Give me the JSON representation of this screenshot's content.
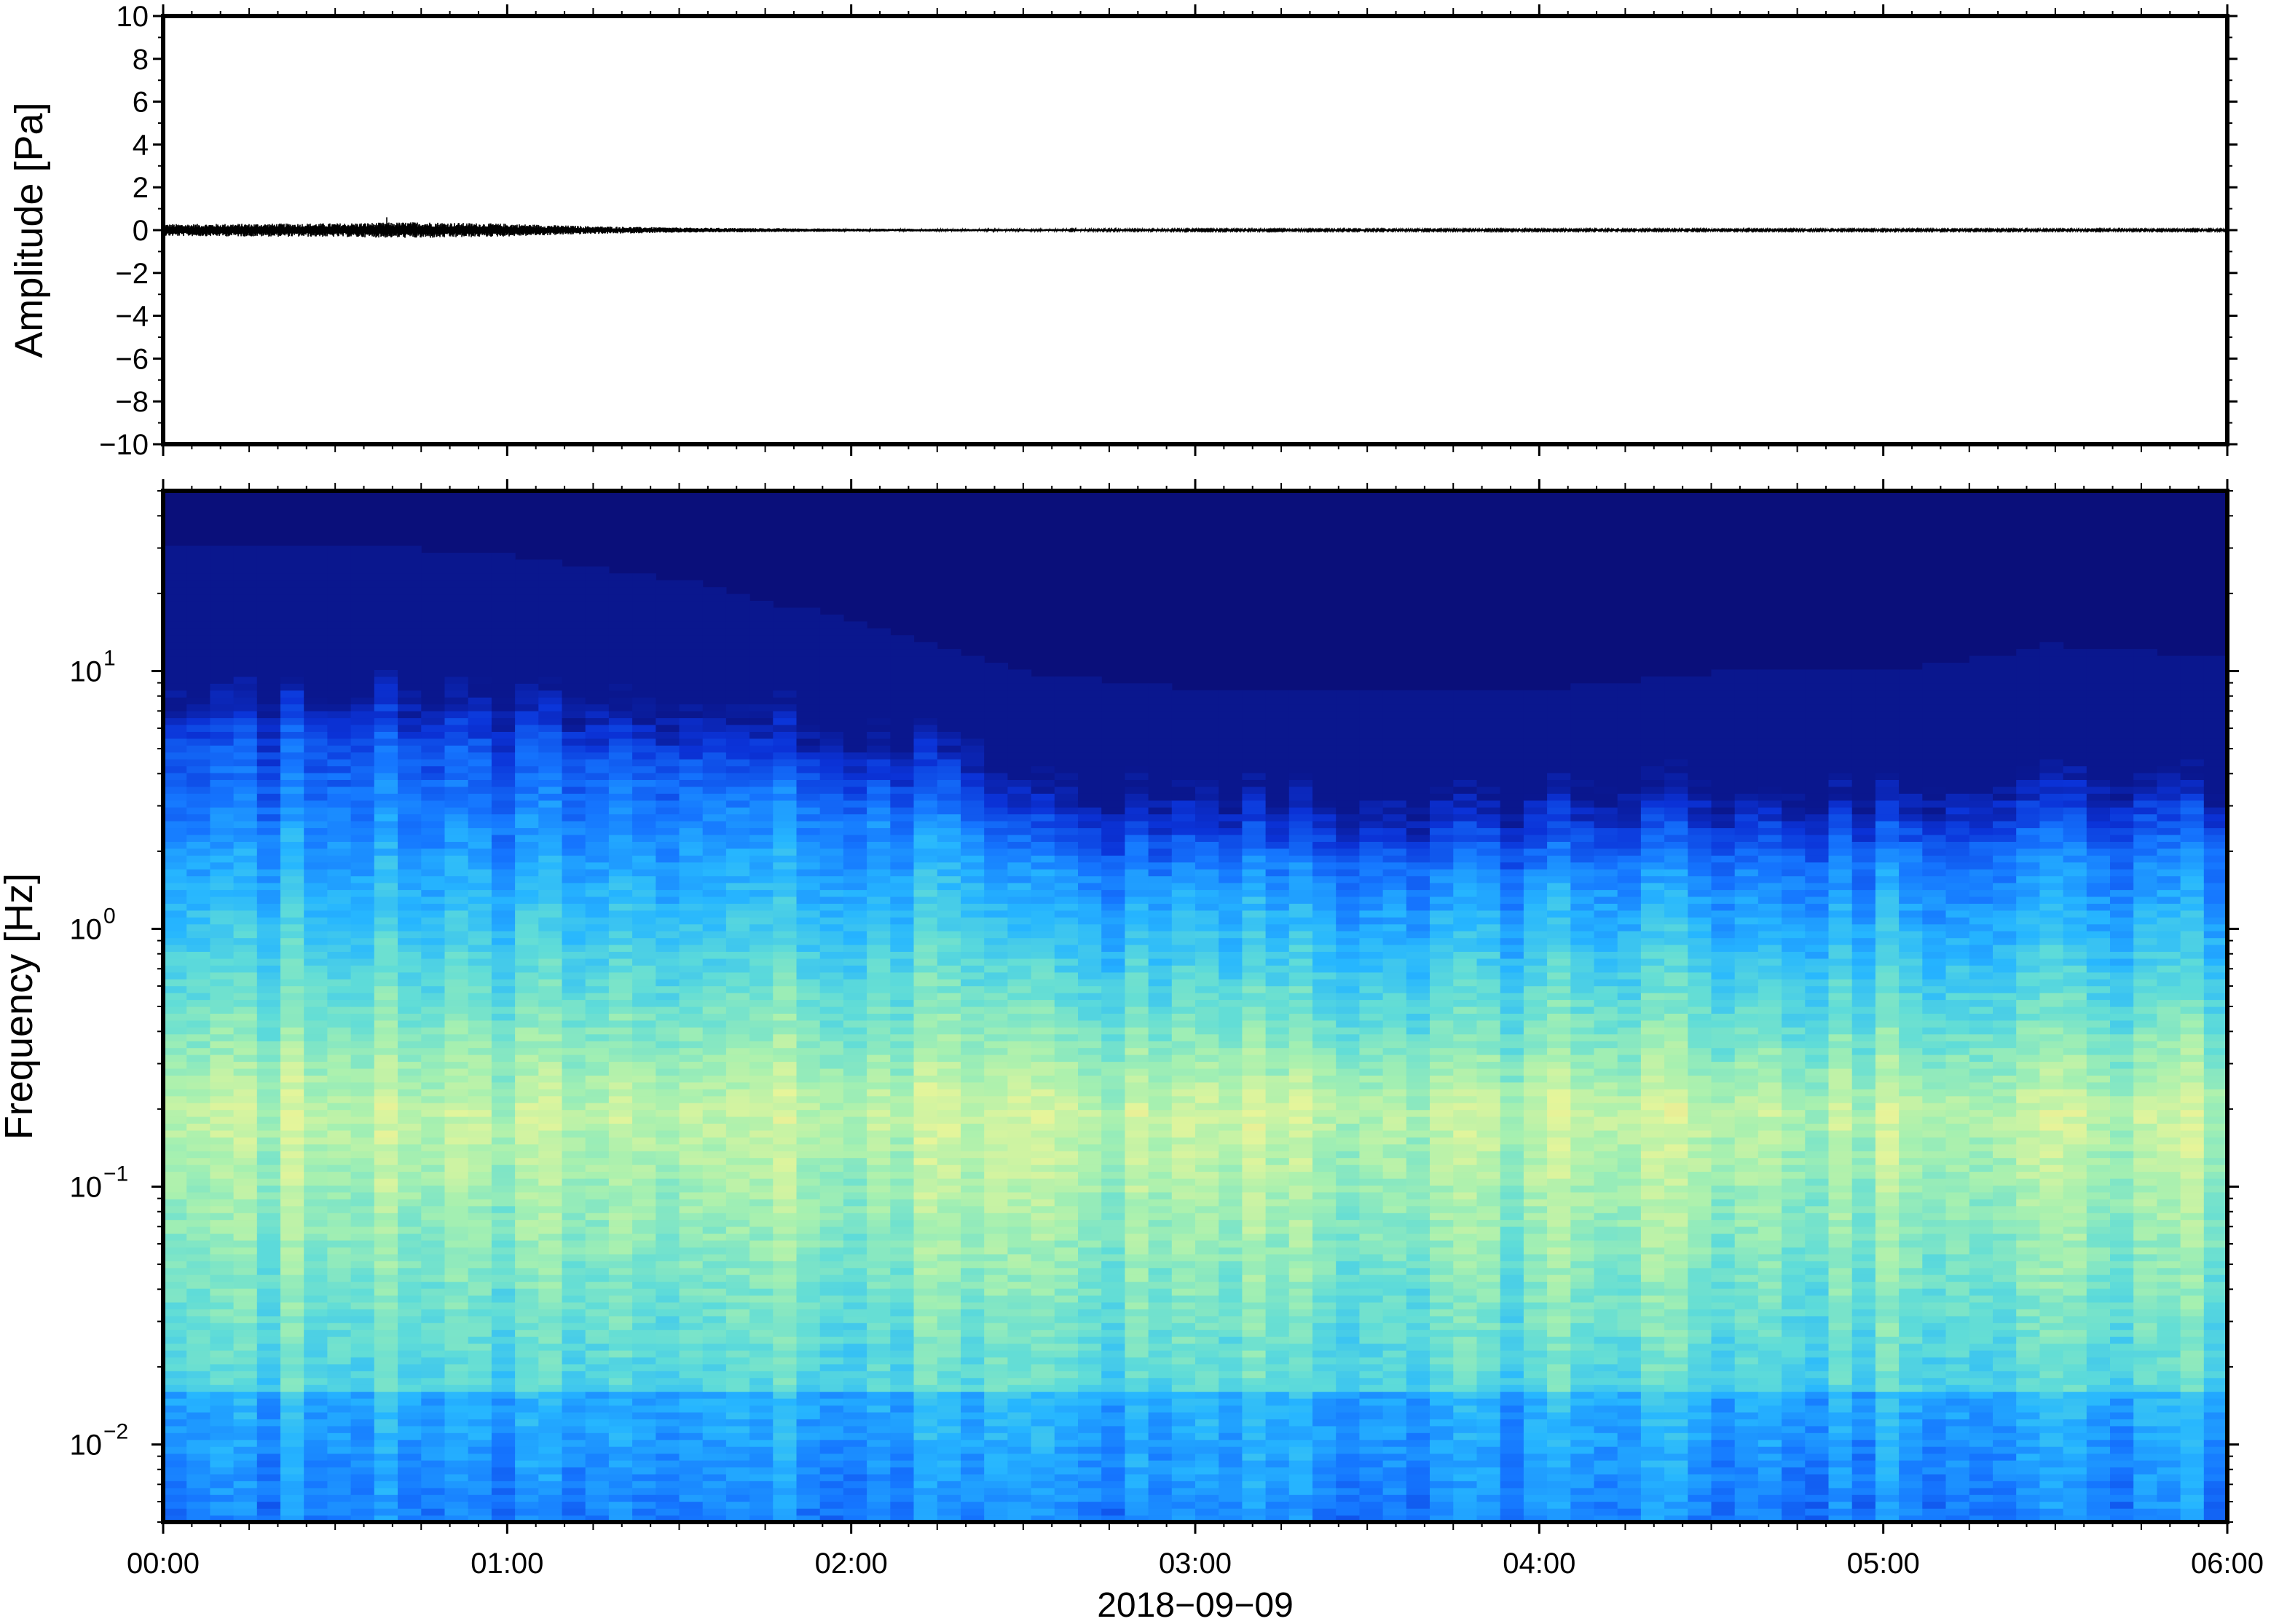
{
  "chart_data": [
    {
      "type": "line",
      "ylabel": "Amplitude [Pa]",
      "ylim": [
        -10,
        10
      ],
      "yticks": [
        -10,
        -8,
        -6,
        -4,
        -2,
        0,
        2,
        4,
        6,
        8,
        10
      ],
      "ytick_labels": [
        "−10",
        "−8",
        "−6",
        "−4",
        "−2",
        "0",
        "2",
        "4",
        "6",
        "8",
        "10"
      ],
      "xlim_hours": [
        0,
        6
      ],
      "series": [
        {
          "x_hours": [
            0.0,
            0.25,
            0.5,
            0.75,
            1.0,
            1.25,
            1.5,
            1.75,
            2.0,
            2.5,
            3.0,
            3.5,
            4.0,
            4.5,
            5.0,
            5.5,
            6.0
          ],
          "envelope_pa": [
            0.28,
            0.3,
            0.32,
            0.38,
            0.3,
            0.18,
            0.12,
            0.09,
            0.07,
            0.05,
            0.04,
            0.04,
            0.04,
            0.04,
            0.04,
            0.04,
            0.04
          ],
          "peak_pa": 0.6,
          "peak_at_hours": 0.65,
          "color": "#000000"
        }
      ]
    },
    {
      "type": "heatmap",
      "ylabel": "Frequency [Hz]",
      "yscale": "log",
      "ylim_hz": [
        0.005,
        50
      ],
      "ytick_labels": [
        {
          "value": 0.01,
          "mantissa": "10",
          "exp": "−2"
        },
        {
          "value": 0.1,
          "mantissa": "10",
          "exp": "−1"
        },
        {
          "value": 1,
          "mantissa": "10",
          "exp": "0"
        },
        {
          "value": 10,
          "mantissa": "10",
          "exp": "1"
        }
      ],
      "xlabel": "2018−09−09",
      "xlim_hours": [
        0,
        6
      ],
      "xticks_hours": [
        0,
        1,
        2,
        3,
        4,
        5,
        6
      ],
      "xtick_labels": [
        "00:00",
        "01:00",
        "02:00",
        "03:00",
        "04:00",
        "05:00",
        "06:00"
      ],
      "colormap": [
        "#0a0f7a",
        "#0b33d8",
        "#1576ff",
        "#26b6ff",
        "#5fdcd8",
        "#a6f0b0",
        "#e6f59a",
        "#f4c77e"
      ],
      "upper_cutoff_profile": {
        "hours": [
          0.0,
          0.5,
          1.0,
          1.5,
          1.9,
          2.5,
          3.0,
          3.5,
          4.0,
          4.5,
          5.0,
          5.5,
          6.0
        ],
        "cutoff_hz": [
          22,
          22,
          20,
          16,
          12,
          7,
          6,
          6,
          6,
          7,
          7,
          9,
          8
        ]
      },
      "energy_maximum_hz": [
        0.15,
        0.25
      ]
    }
  ]
}
